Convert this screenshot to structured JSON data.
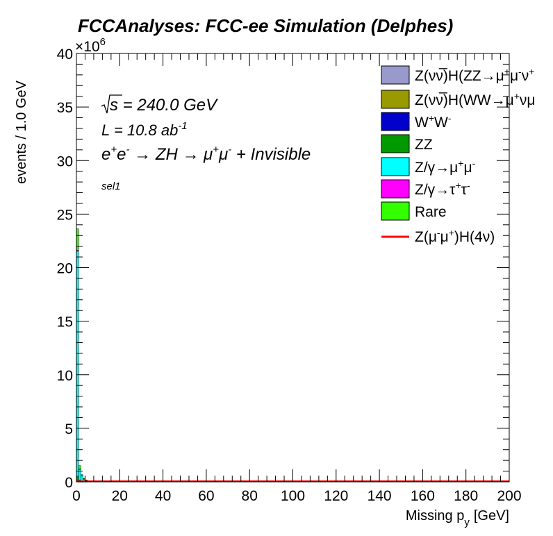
{
  "chart_data": {
    "type": "histogram-stacked",
    "title": "FCCAnalyses: FCC-ee Simulation (Delphes)",
    "xlabel": "Missing p",
    "xlabel_sub": "y",
    "xlabel_unit": "[GeV]",
    "ylabel": "events / 1.0 GeV",
    "y_exponent_label": "×10",
    "y_exponent_power": "6",
    "xlim": [
      0,
      200
    ],
    "ylim": [
      0,
      40
    ],
    "x_ticks": [
      "0",
      "20",
      "40",
      "60",
      "80",
      "100",
      "120",
      "140",
      "160",
      "180",
      "200"
    ],
    "y_ticks": [
      "0",
      "5",
      "10",
      "15",
      "20",
      "25",
      "30",
      "35",
      "40"
    ],
    "bin_edges_x": [
      0,
      1,
      2,
      3,
      4,
      5,
      6,
      7,
      8,
      9,
      10
    ],
    "series": [
      {
        "name": "Z(νν̅)H(ZZ→μ⁺μ⁻ν",
        "legend_parts": [
          "Z(ν",
          "ν̅",
          ")H(ZZ→μ",
          "+",
          "μ",
          "-",
          "ν",
          "+"
        ],
        "color": "#9999cc",
        "style": "fill",
        "values": [
          0.03,
          0.01,
          0,
          0,
          0,
          0,
          0,
          0,
          0,
          0
        ]
      },
      {
        "name": "Z(νν̅)H(WW→μ⁺νμ",
        "legend_parts": [
          "Z(ν",
          "ν̅",
          ")H(WW→μ",
          "+",
          "νμ"
        ],
        "color": "#999900",
        "style": "fill",
        "values": [
          0.04,
          0.01,
          0,
          0,
          0,
          0,
          0,
          0,
          0,
          0
        ]
      },
      {
        "name": "W⁺W⁻",
        "legend_parts": [
          "W",
          "+",
          "W",
          "-"
        ],
        "color": "#0000cc",
        "style": "fill",
        "values": [
          0.06,
          0.02,
          0.01,
          0,
          0,
          0,
          0,
          0,
          0,
          0
        ]
      },
      {
        "name": "ZZ",
        "legend_parts": [
          "ZZ"
        ],
        "color": "#009900",
        "style": "fill",
        "values": [
          0.4,
          0.12,
          0.04,
          0.02,
          0.01,
          0,
          0,
          0,
          0,
          0
        ]
      },
      {
        "name": "Z/γ→μ⁺μ⁻",
        "legend_parts": [
          "Z/γ→μ",
          "+",
          "μ",
          "-"
        ],
        "color": "#00ffff",
        "style": "fill",
        "values": [
          21.0,
          1.0,
          0.5,
          0.25,
          0.15,
          0.1,
          0.08,
          0.06,
          0.05,
          0.04
        ]
      },
      {
        "name": "Z/γ→τ⁺τ⁻",
        "legend_parts": [
          "Z/γ→τ",
          "+",
          "τ",
          "-"
        ],
        "color": "#ff00ff",
        "style": "fill",
        "values": [
          0.1,
          0.05,
          0.02,
          0.01,
          0,
          0,
          0,
          0,
          0,
          0
        ]
      },
      {
        "name": "Rare",
        "legend_parts": [
          "Rare"
        ],
        "color": "#33ff00",
        "style": "fill",
        "values": [
          2.0,
          0.3,
          0.1,
          0.05,
          0.02,
          0.01,
          0,
          0,
          0,
          0
        ]
      },
      {
        "name": "Z(μ⁻μ⁺)H(4ν)",
        "legend_parts": [
          "Z(μ",
          "-",
          "μ",
          "+",
          ")H(4ν)"
        ],
        "color": "#ff0000",
        "style": "line",
        "values": [
          0.05,
          0.05,
          0.05,
          0.05,
          0.05,
          0.05,
          0.05,
          0.05,
          0.05,
          0.05
        ]
      }
    ],
    "annotations": {
      "sqrt_s": "s",
      "sqrt_s_value": " = 240.0 GeV",
      "lumi": "L = 10.8 ab",
      "lumi_exp": "-1",
      "process_parts": [
        "e",
        "+",
        "e",
        "-",
        " → ZH → μ",
        "+",
        "μ",
        "-",
        " + Invisible"
      ],
      "selection": "sel1"
    }
  }
}
